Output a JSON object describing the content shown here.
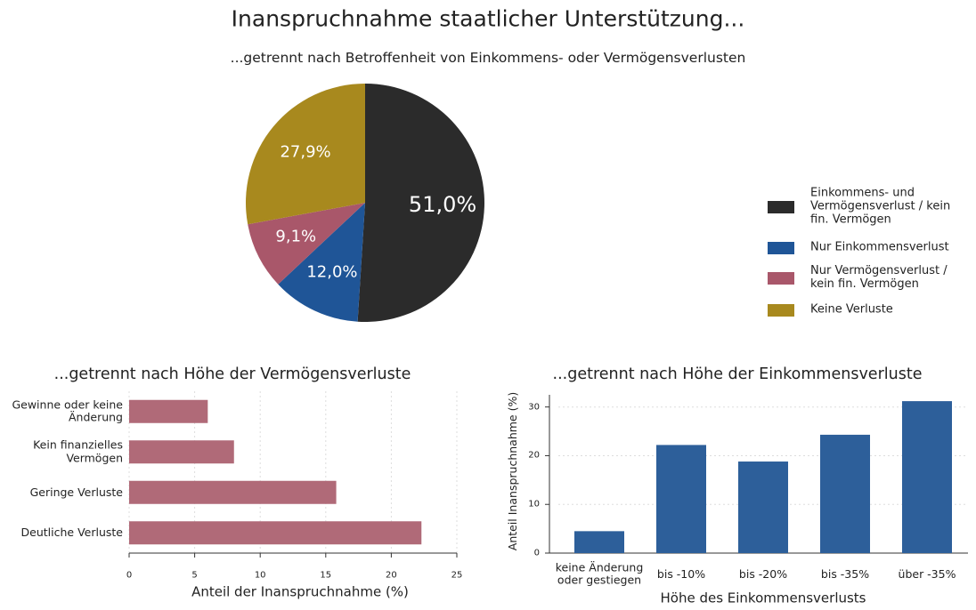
{
  "title": "Inanspruchnahme staatlicher Unterstützung...",
  "chart_data": [
    {
      "type": "pie",
      "subtitle": "...getrennt nach Betroffenheit von Einkommens- oder Vermögensverlusten",
      "categories": [
        "Einkommens- und Vermögensverlust / kein fin. Vermögen",
        "Nur Einkommensverlust",
        "Nur Vermögensverlust / kein fin. Vermögen",
        "Keine Verluste"
      ],
      "values": [
        51.0,
        12.0,
        9.1,
        27.9
      ],
      "value_labels": [
        "51,0%",
        "12,0%",
        "9,1%",
        "27,9%"
      ],
      "colors": [
        "#2b2b2b",
        "#1f5597",
        "#a9576a",
        "#a8891e"
      ],
      "legend": "right"
    },
    {
      "type": "barh",
      "title": "...getrennt nach Höhe der Vermögensverluste",
      "categories": [
        "Gewinne oder keine Änderung",
        "Kein finanzielles Vermögen",
        "Geringe Verluste",
        "Deutliche Verluste"
      ],
      "values": [
        6.0,
        8.0,
        15.8,
        22.3
      ],
      "color": "#b06a78",
      "xlabel": "Anteil der Inanspruchnahme (%)",
      "xlim": [
        0,
        25
      ],
      "xticks": [
        0,
        5,
        10,
        15,
        20,
        25
      ],
      "grid": true
    },
    {
      "type": "bar",
      "title": "...getrennt nach Höhe der Einkommensverluste",
      "categories": [
        "keine Änderung oder gestiegen",
        "bis -10%",
        "bis -20%",
        "bis -35%",
        "über -35%"
      ],
      "values": [
        4.5,
        22.2,
        18.8,
        24.3,
        31.2
      ],
      "color": "#2d5f9a",
      "xlabel": "Höhe des Einkommensverlusts",
      "ylabel": "Anteil Inanspruchnahme (%)",
      "ylim": [
        0,
        32.5
      ],
      "yticks": [
        0,
        10,
        20,
        30
      ],
      "grid": true
    }
  ]
}
